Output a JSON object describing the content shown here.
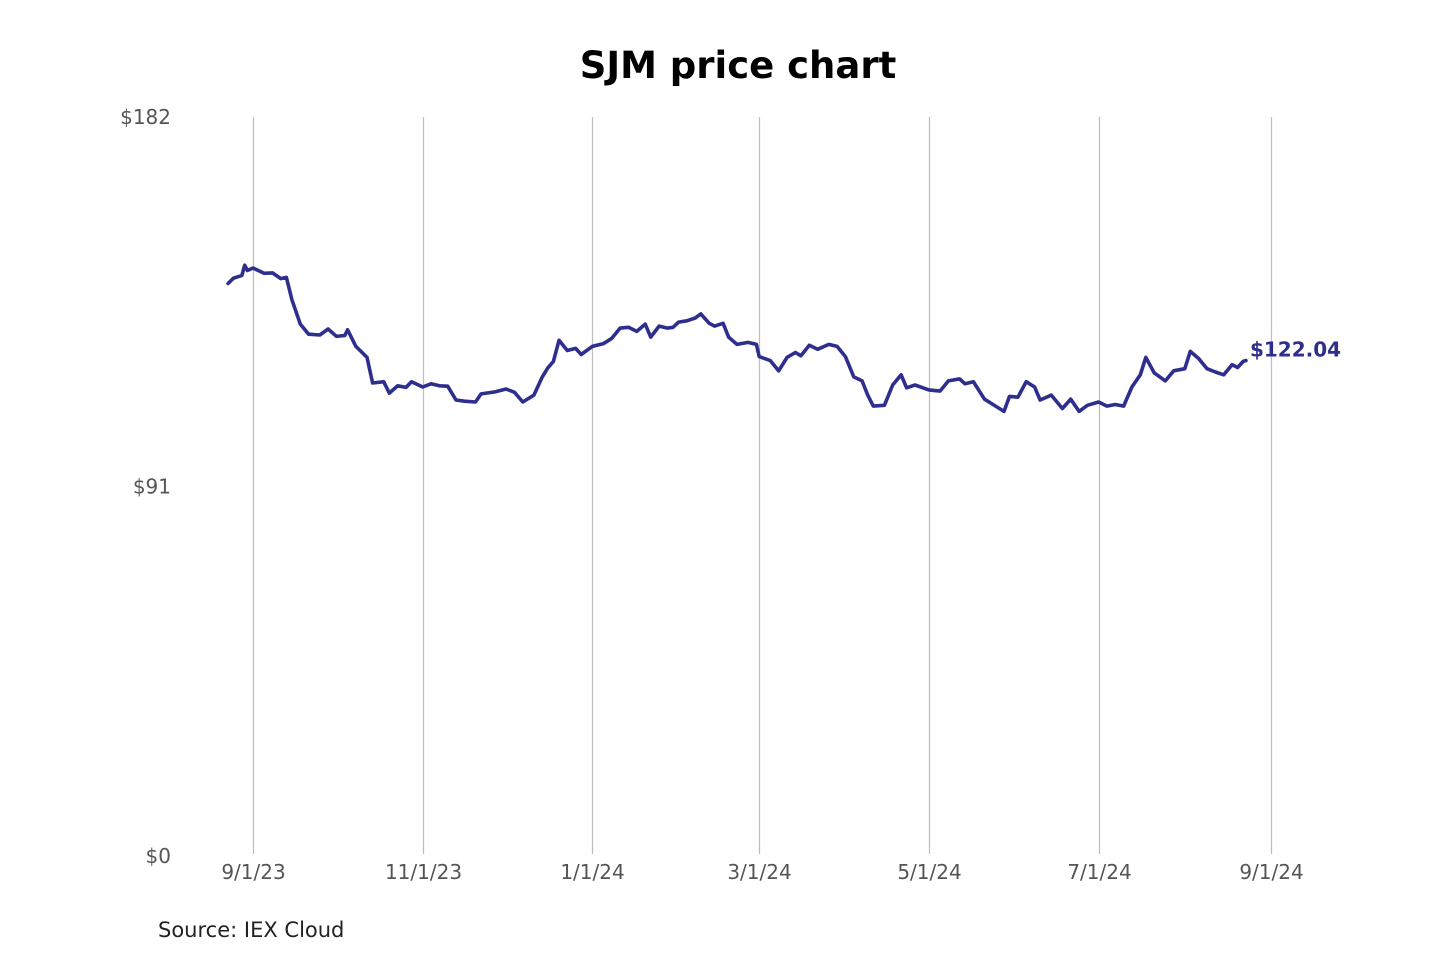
{
  "chart_data": {
    "type": "line",
    "title": "SJM price chart",
    "xlabel": "",
    "ylabel": "",
    "ylim": [
      0,
      182
    ],
    "yticks": [
      {
        "value": 0,
        "label": "$0"
      },
      {
        "value": 91,
        "label": "$91"
      },
      {
        "value": 182,
        "label": "$182"
      }
    ],
    "xlim": [
      "2023-08-01",
      "2024-09-10"
    ],
    "xticks": [
      {
        "date": "2023-09-01",
        "label": "9/1/23"
      },
      {
        "date": "2023-11-01",
        "label": "11/1/23"
      },
      {
        "date": "2024-01-01",
        "label": "1/1/24"
      },
      {
        "date": "2024-03-01",
        "label": "3/1/24"
      },
      {
        "date": "2024-05-01",
        "label": "5/1/24"
      },
      {
        "date": "2024-07-01",
        "label": "7/1/24"
      },
      {
        "date": "2024-09-01",
        "label": "9/1/24"
      }
    ],
    "grid": "vertical",
    "series": [
      {
        "name": "SJM",
        "color": "#2e2e8f",
        "end_label": "$122.04",
        "points": [
          [
            "2023-08-23",
            141.0
          ],
          [
            "2023-08-25",
            142.3
          ],
          [
            "2023-08-28",
            143.0
          ],
          [
            "2023-08-29",
            145.5
          ],
          [
            "2023-08-30",
            144.2
          ],
          [
            "2023-09-01",
            144.8
          ],
          [
            "2023-09-05",
            143.5
          ],
          [
            "2023-09-08",
            143.6
          ],
          [
            "2023-09-11",
            142.2
          ],
          [
            "2023-09-13",
            142.5
          ],
          [
            "2023-09-15",
            137.0
          ],
          [
            "2023-09-18",
            131.0
          ],
          [
            "2023-09-21",
            128.5
          ],
          [
            "2023-09-25",
            128.3
          ],
          [
            "2023-09-28",
            129.8
          ],
          [
            "2023-10-01",
            128.0
          ],
          [
            "2023-10-04",
            128.2
          ],
          [
            "2023-10-05",
            129.6
          ],
          [
            "2023-10-08",
            125.5
          ],
          [
            "2023-10-12",
            122.8
          ],
          [
            "2023-10-14",
            116.5
          ],
          [
            "2023-10-18",
            116.8
          ],
          [
            "2023-10-20",
            114.0
          ],
          [
            "2023-10-23",
            115.8
          ],
          [
            "2023-10-26",
            115.4
          ],
          [
            "2023-10-28",
            116.8
          ],
          [
            "2023-11-01",
            115.5
          ],
          [
            "2023-11-04",
            116.3
          ],
          [
            "2023-11-07",
            115.8
          ],
          [
            "2023-11-10",
            115.7
          ],
          [
            "2023-11-13",
            112.3
          ],
          [
            "2023-11-16",
            112.0
          ],
          [
            "2023-11-20",
            111.8
          ],
          [
            "2023-11-22",
            113.8
          ],
          [
            "2023-11-27",
            114.3
          ],
          [
            "2023-12-01",
            115.0
          ],
          [
            "2023-12-04",
            114.2
          ],
          [
            "2023-12-07",
            111.8
          ],
          [
            "2023-12-11",
            113.5
          ],
          [
            "2023-12-14",
            118.0
          ],
          [
            "2023-12-16",
            120.2
          ],
          [
            "2023-12-18",
            121.8
          ],
          [
            "2023-12-20",
            127.0
          ],
          [
            "2023-12-23",
            124.5
          ],
          [
            "2023-12-26",
            125.0
          ],
          [
            "2023-12-28",
            123.5
          ],
          [
            "2024-01-01",
            125.5
          ],
          [
            "2024-01-05",
            126.2
          ],
          [
            "2024-01-08",
            127.5
          ],
          [
            "2024-01-11",
            130.0
          ],
          [
            "2024-01-14",
            130.2
          ],
          [
            "2024-01-17",
            129.2
          ],
          [
            "2024-01-20",
            131.0
          ],
          [
            "2024-01-22",
            127.8
          ],
          [
            "2024-01-25",
            130.5
          ],
          [
            "2024-01-28",
            130.0
          ],
          [
            "2024-01-30",
            130.2
          ],
          [
            "2024-02-01",
            131.5
          ],
          [
            "2024-02-04",
            131.8
          ],
          [
            "2024-02-07",
            132.5
          ],
          [
            "2024-02-09",
            133.5
          ],
          [
            "2024-02-12",
            131.2
          ],
          [
            "2024-02-14",
            130.5
          ],
          [
            "2024-02-17",
            131.2
          ],
          [
            "2024-02-19",
            127.8
          ],
          [
            "2024-02-22",
            126.0
          ],
          [
            "2024-02-26",
            126.5
          ],
          [
            "2024-02-29",
            126.0
          ],
          [
            "2024-03-01",
            123.0
          ],
          [
            "2024-03-05",
            122.0
          ],
          [
            "2024-03-08",
            119.5
          ],
          [
            "2024-03-11",
            122.8
          ],
          [
            "2024-03-14",
            124.0
          ],
          [
            "2024-03-16",
            123.2
          ],
          [
            "2024-03-19",
            125.8
          ],
          [
            "2024-03-22",
            124.8
          ],
          [
            "2024-03-26",
            126.0
          ],
          [
            "2024-03-29",
            125.5
          ],
          [
            "2024-04-01",
            123.0
          ],
          [
            "2024-04-04",
            118.0
          ],
          [
            "2024-04-07",
            117.0
          ],
          [
            "2024-04-09",
            113.5
          ],
          [
            "2024-04-11",
            110.8
          ],
          [
            "2024-04-15",
            111.0
          ],
          [
            "2024-04-18",
            116.0
          ],
          [
            "2024-04-21",
            118.5
          ],
          [
            "2024-04-23",
            115.3
          ],
          [
            "2024-04-26",
            116.0
          ],
          [
            "2024-05-01",
            114.8
          ],
          [
            "2024-05-05",
            114.5
          ],
          [
            "2024-05-08",
            117.0
          ],
          [
            "2024-05-12",
            117.5
          ],
          [
            "2024-05-14",
            116.3
          ],
          [
            "2024-05-17",
            116.8
          ],
          [
            "2024-05-21",
            112.5
          ],
          [
            "2024-05-25",
            110.8
          ],
          [
            "2024-05-28",
            109.5
          ],
          [
            "2024-05-30",
            113.2
          ],
          [
            "2024-06-02",
            113.0
          ],
          [
            "2024-06-05",
            116.8
          ],
          [
            "2024-06-08",
            115.5
          ],
          [
            "2024-06-10",
            112.3
          ],
          [
            "2024-06-14",
            113.5
          ],
          [
            "2024-06-18",
            110.2
          ],
          [
            "2024-06-21",
            112.5
          ],
          [
            "2024-06-24",
            109.5
          ],
          [
            "2024-06-27",
            111.0
          ],
          [
            "2024-07-01",
            111.8
          ],
          [
            "2024-07-04",
            110.8
          ],
          [
            "2024-07-07",
            111.2
          ],
          [
            "2024-07-10",
            110.8
          ],
          [
            "2024-07-13",
            115.5
          ],
          [
            "2024-07-16",
            118.5
          ],
          [
            "2024-07-18",
            122.8
          ],
          [
            "2024-07-21",
            119.0
          ],
          [
            "2024-07-25",
            117.0
          ],
          [
            "2024-07-28",
            119.5
          ],
          [
            "2024-08-01",
            120.0
          ],
          [
            "2024-08-03",
            124.3
          ],
          [
            "2024-08-06",
            122.5
          ],
          [
            "2024-08-09",
            120.0
          ],
          [
            "2024-08-12",
            119.2
          ],
          [
            "2024-08-15",
            118.5
          ],
          [
            "2024-08-18",
            121.0
          ],
          [
            "2024-08-20",
            120.3
          ],
          [
            "2024-08-22",
            121.8
          ],
          [
            "2024-08-23",
            122.04
          ]
        ]
      }
    ]
  },
  "source_note": "Source: IEX Cloud"
}
